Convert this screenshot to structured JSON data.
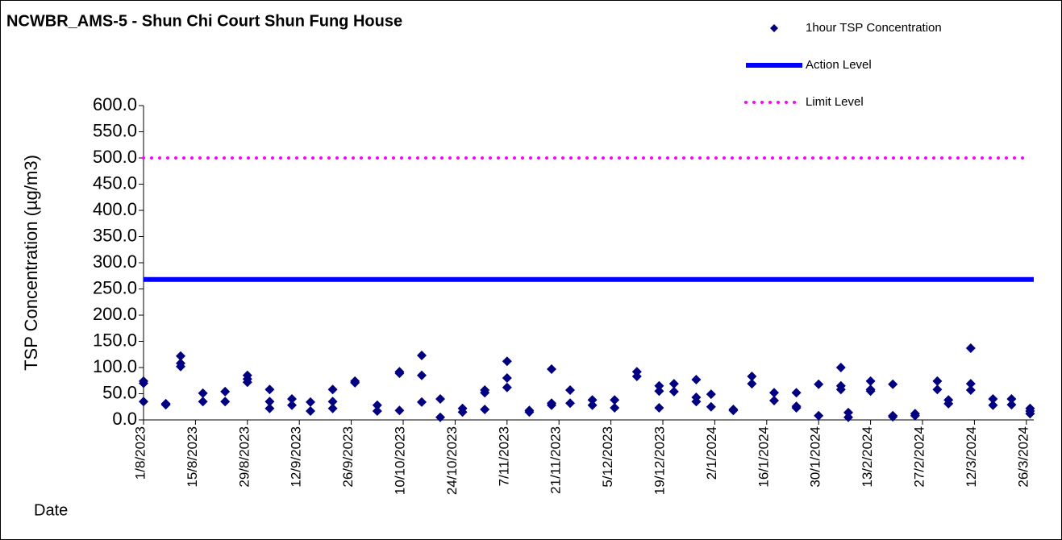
{
  "chart_data": {
    "type": "scatter",
    "title": "NCWBR_AMS-5 - Shun Chi Court Shun Fung House",
    "x_label": "Date",
    "y_label": "TSP Concentration (µg/m3)",
    "xlim": [
      "1/8/2023",
      "28/3/2024"
    ],
    "xticks": [
      "1/8/2023",
      "15/8/2023",
      "29/8/2023",
      "12/9/2023",
      "26/9/2023",
      "10/10/2023",
      "24/10/2023",
      "7/11/2023",
      "21/11/2023",
      "5/12/2023",
      "19/12/2023",
      "2/1/2024",
      "16/1/2024",
      "30/1/2024",
      "13/2/2024",
      "27/2/2024",
      "12/3/2024",
      "26/3/2024"
    ],
    "ylim": [
      0,
      600
    ],
    "yticks": [
      {
        "value": 0,
        "label": "0.0"
      },
      {
        "value": 50,
        "label": "50.0"
      },
      {
        "value": 100,
        "label": "100.0"
      },
      {
        "value": 150,
        "label": "150.0"
      },
      {
        "value": 200,
        "label": "200.0"
      },
      {
        "value": 250,
        "label": "250.0"
      },
      {
        "value": 300,
        "label": "300.0"
      },
      {
        "value": 350,
        "label": "350.0"
      },
      {
        "value": 400,
        "label": "400.0"
      },
      {
        "value": 450,
        "label": "450.0"
      },
      {
        "value": 500,
        "label": "500.0"
      },
      {
        "value": 550,
        "label": "550.0"
      },
      {
        "value": 600,
        "label": "600.0"
      }
    ],
    "legend": "top-right",
    "series": [
      {
        "name": "1hour TSP Concentration",
        "color": "#000080",
        "style": "marker",
        "x": [
          "1/8/2023",
          "1/8/2023",
          "1/8/2023",
          "7/8/2023",
          "7/8/2023",
          "11/8/2023",
          "11/8/2023",
          "11/8/2023",
          "17/8/2023",
          "17/8/2023",
          "23/8/2023",
          "23/8/2023",
          "29/8/2023",
          "29/8/2023",
          "29/8/2023",
          "4/9/2023",
          "4/9/2023",
          "4/9/2023",
          "10/9/2023",
          "10/9/2023",
          "15/9/2023",
          "15/9/2023",
          "21/9/2023",
          "21/9/2023",
          "21/9/2023",
          "27/9/2023",
          "27/9/2023",
          "3/10/2023",
          "3/10/2023",
          "9/10/2023",
          "9/10/2023",
          "9/10/2023",
          "15/10/2023",
          "15/10/2023",
          "15/10/2023",
          "20/10/2023",
          "20/10/2023",
          "26/10/2023",
          "26/10/2023",
          "1/11/2023",
          "1/11/2023",
          "1/11/2023",
          "7/11/2023",
          "7/11/2023",
          "7/11/2023",
          "13/11/2023",
          "13/11/2023",
          "19/11/2023",
          "19/11/2023",
          "19/11/2023",
          "24/11/2023",
          "24/11/2023",
          "30/11/2023",
          "30/11/2023",
          "6/12/2023",
          "6/12/2023",
          "12/12/2023",
          "12/12/2023",
          "18/12/2023",
          "18/12/2023",
          "18/12/2023",
          "22/12/2023",
          "22/12/2023",
          "28/12/2023",
          "28/12/2023",
          "28/12/2023",
          "1/1/2024",
          "1/1/2024",
          "7/1/2024",
          "7/1/2024",
          "12/1/2024",
          "12/1/2024",
          "18/1/2024",
          "18/1/2024",
          "24/1/2024",
          "24/1/2024",
          "24/1/2024",
          "30/1/2024",
          "30/1/2024",
          "5/2/2024",
          "5/2/2024",
          "5/2/2024",
          "7/2/2024",
          "7/2/2024",
          "13/2/2024",
          "13/2/2024",
          "13/2/2024",
          "19/2/2024",
          "19/2/2024",
          "19/2/2024",
          "25/2/2024",
          "25/2/2024",
          "2/3/2024",
          "2/3/2024",
          "5/3/2024",
          "5/3/2024",
          "11/3/2024",
          "11/3/2024",
          "11/3/2024",
          "17/3/2024",
          "17/3/2024",
          "22/3/2024",
          "22/3/2024",
          "27/3/2024",
          "27/3/2024",
          "27/3/2024"
        ],
        "values": [
          74,
          35,
          70,
          31,
          29,
          122,
          102,
          108,
          51,
          35,
          54,
          35,
          85,
          72,
          78,
          58,
          35,
          22,
          40,
          28,
          34,
          17,
          58,
          35,
          22,
          71,
          74,
          28,
          17,
          92,
          89,
          18,
          123,
          85,
          34,
          40,
          5,
          22,
          15,
          57,
          52,
          20,
          112,
          80,
          62,
          18,
          15,
          97,
          32,
          28,
          57,
          32,
          38,
          28,
          38,
          23,
          92,
          83,
          65,
          55,
          23,
          69,
          54,
          77,
          43,
          35,
          49,
          25,
          18,
          20,
          83,
          69,
          52,
          37,
          52,
          26,
          23,
          68,
          8,
          100,
          65,
          58,
          14,
          5,
          74,
          55,
          58,
          68,
          8,
          6,
          12,
          8,
          74,
          58,
          38,
          31,
          137,
          69,
          57,
          40,
          28,
          40,
          29,
          22,
          12,
          17
        ]
      },
      {
        "name": "Action Level",
        "color": "#0000ff",
        "style": "solid",
        "x": [
          "1/8/2023",
          "28/3/2024"
        ],
        "values": [
          268,
          268
        ]
      },
      {
        "name": "Limit Level",
        "color": "#ff00ff",
        "style": "dotted",
        "x": [
          "1/8/2023",
          "26/3/2024"
        ],
        "values": [
          500,
          500
        ]
      }
    ]
  }
}
